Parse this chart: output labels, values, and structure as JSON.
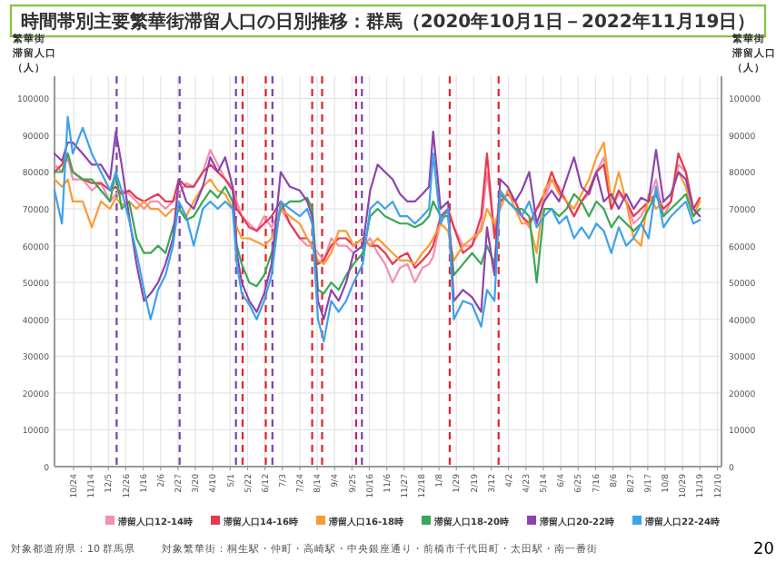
{
  "chart_data": {
    "type": "line",
    "title": "時間帯別主要繁華街滞留人口の日別推移：群馬（2020年10月1日－2022年11月19日）",
    "ylabel": "繁華街滞留人口（人）",
    "y2label": "繁華街滞留人口（人）",
    "x": [
      "2020-10-01",
      "2020-10-10",
      "2020-10-17",
      "2020-10-23",
      "2020-11-04",
      "2020-11-15",
      "2020-11-26",
      "2020-12-07",
      "2020-12-14",
      "2020-12-21",
      "2020-12-30",
      "2021-01-08",
      "2021-01-17",
      "2021-01-25",
      "2021-02-03",
      "2021-02-12",
      "2021-02-21",
      "2021-02-28",
      "2021-03-09",
      "2021-03-18",
      "2021-03-29",
      "2021-04-07",
      "2021-04-16",
      "2021-04-25",
      "2021-05-04",
      "2021-05-09",
      "2021-05-15",
      "2021-05-24",
      "2021-06-02",
      "2021-06-11",
      "2021-06-20",
      "2021-07-01",
      "2021-07-12",
      "2021-07-24",
      "2021-08-02",
      "2021-08-08",
      "2021-08-15",
      "2021-08-22",
      "2021-08-31",
      "2021-09-09",
      "2021-09-18",
      "2021-09-27",
      "2021-10-08",
      "2021-10-17",
      "2021-10-26",
      "2021-11-04",
      "2021-11-13",
      "2021-11-22",
      "2021-12-01",
      "2021-12-10",
      "2021-12-19",
      "2021-12-27",
      "2022-01-01",
      "2022-01-10",
      "2022-01-19",
      "2022-01-26",
      "2022-02-06",
      "2022-02-17",
      "2022-02-28",
      "2022-03-07",
      "2022-03-16",
      "2022-03-23",
      "2022-04-01",
      "2022-04-10",
      "2022-04-18",
      "2022-04-27",
      "2022-05-06",
      "2022-05-15",
      "2022-05-24",
      "2022-06-02",
      "2022-06-11",
      "2022-06-20",
      "2022-06-29",
      "2022-07-08",
      "2022-07-17",
      "2022-07-26",
      "2022-08-04",
      "2022-08-13",
      "2022-08-22",
      "2022-08-31",
      "2022-09-09",
      "2022-09-18",
      "2022-09-27",
      "2022-10-06",
      "2022-10-15",
      "2022-10-24",
      "2022-11-02",
      "2022-11-11",
      "2022-11-19"
    ],
    "series": [
      {
        "name": "滞留人口12-14時",
        "color": "#f48fb1",
        "values": [
          82000,
          80000,
          84000,
          78000,
          78000,
          75000,
          77000,
          72000,
          74000,
          75000,
          74000,
          72000,
          70000,
          72000,
          72000,
          70000,
          72000,
          74000,
          77000,
          76000,
          80000,
          86000,
          82000,
          78000,
          76000,
          72000,
          68000,
          66000,
          64000,
          68000,
          65000,
          70000,
          66000,
          62000,
          60000,
          60000,
          58000,
          56000,
          62000,
          60000,
          60000,
          58000,
          60000,
          62000,
          58000,
          55000,
          50000,
          54000,
          55000,
          50000,
          54000,
          55000,
          57000,
          67000,
          70000,
          65000,
          60000,
          60000,
          65000,
          80000,
          64000,
          72000,
          74000,
          72000,
          68000,
          65000,
          70000,
          72000,
          78000,
          76000,
          72000,
          68000,
          72000,
          74000,
          80000,
          84000,
          70000,
          74000,
          72000,
          66000,
          68000,
          72000,
          78000,
          68000,
          72000,
          82000,
          80000,
          70000,
          72000
        ]
      },
      {
        "name": "滞留人口14-16時",
        "color": "#e8384f",
        "values": [
          80000,
          82000,
          85000,
          80000,
          78000,
          77000,
          77000,
          75000,
          76000,
          74000,
          75000,
          73000,
          72000,
          73000,
          74000,
          72000,
          72000,
          78000,
          76000,
          76000,
          80000,
          82000,
          80000,
          78000,
          75000,
          70000,
          68000,
          65000,
          64000,
          66000,
          68000,
          72000,
          66000,
          62000,
          62000,
          60000,
          55000,
          56000,
          60000,
          62000,
          62000,
          60000,
          62000,
          60000,
          60000,
          58000,
          55000,
          57000,
          58000,
          54000,
          56000,
          58000,
          60000,
          68000,
          70000,
          65000,
          58000,
          60000,
          68000,
          85000,
          62000,
          72000,
          74000,
          72000,
          68000,
          66000,
          70000,
          74000,
          80000,
          75000,
          72000,
          68000,
          72000,
          75000,
          80000,
          82000,
          70000,
          75000,
          72000,
          68000,
          70000,
          72000,
          74000,
          70000,
          72000,
          85000,
          80000,
          70000,
          73000
        ]
      },
      {
        "name": "滞留人口16-18時",
        "color": "#fd9a34",
        "values": [
          78000,
          76000,
          78000,
          72000,
          72000,
          65000,
          72000,
          70000,
          73000,
          71000,
          72000,
          70000,
          72000,
          70000,
          70000,
          68000,
          70000,
          70000,
          68000,
          72000,
          76000,
          78000,
          75000,
          74000,
          70000,
          65000,
          62000,
          62000,
          61000,
          60000,
          62000,
          70000,
          68000,
          66000,
          62000,
          60000,
          56000,
          55000,
          58000,
          64000,
          64000,
          60000,
          62000,
          60000,
          62000,
          60000,
          58000,
          56000,
          56000,
          55000,
          58000,
          60000,
          62000,
          66000,
          64000,
          56000,
          60000,
          62000,
          64000,
          70000,
          66000,
          70000,
          75000,
          70000,
          66000,
          66000,
          58000,
          75000,
          78000,
          74000,
          72000,
          70000,
          74000,
          78000,
          84000,
          88000,
          72000,
          80000,
          72000,
          62000,
          60000,
          74000,
          70000,
          72000,
          74000,
          80000,
          76000,
          68000,
          72000
        ]
      },
      {
        "name": "滞留人口18-20時",
        "color": "#3aa757",
        "values": [
          80000,
          80000,
          85000,
          80000,
          78000,
          78000,
          75000,
          72000,
          80000,
          70000,
          72000,
          62000,
          58000,
          58000,
          60000,
          58000,
          65000,
          70000,
          67000,
          68000,
          72000,
          75000,
          73000,
          76000,
          72000,
          60000,
          55000,
          50000,
          49000,
          52000,
          58000,
          70000,
          72000,
          72000,
          73000,
          70000,
          48000,
          47000,
          50000,
          48000,
          52000,
          55000,
          58000,
          68000,
          70000,
          68000,
          67000,
          66000,
          66000,
          65000,
          66000,
          68000,
          72000,
          68000,
          68000,
          52000,
          55000,
          58000,
          55000,
          60000,
          55000,
          74000,
          72000,
          70000,
          70000,
          68000,
          50000,
          70000,
          70000,
          68000,
          70000,
          74000,
          72000,
          68000,
          72000,
          70000,
          65000,
          68000,
          66000,
          64000,
          66000,
          70000,
          74000,
          68000,
          70000,
          72000,
          74000,
          68000,
          70000
        ]
      },
      {
        "name": "滞留人口20-22時",
        "color": "#8e44ad",
        "values": [
          85000,
          83000,
          88000,
          88000,
          85000,
          82000,
          82000,
          78000,
          91000,
          82000,
          68000,
          55000,
          45000,
          47000,
          50000,
          55000,
          62000,
          78000,
          72000,
          70000,
          76000,
          84000,
          80000,
          84000,
          76000,
          58000,
          50000,
          45000,
          42000,
          47000,
          55000,
          80000,
          76000,
          75000,
          72000,
          68000,
          45000,
          40000,
          48000,
          45000,
          50000,
          58000,
          60000,
          75000,
          82000,
          80000,
          78000,
          74000,
          72000,
          72000,
          74000,
          76000,
          91000,
          70000,
          72000,
          45000,
          48000,
          46000,
          42000,
          65000,
          52000,
          78000,
          76000,
          72000,
          75000,
          80000,
          66000,
          72000,
          75000,
          72000,
          78000,
          84000,
          76000,
          74000,
          80000,
          72000,
          74000,
          70000,
          74000,
          70000,
          73000,
          72000,
          86000,
          72000,
          74000,
          80000,
          78000,
          70000,
          68000
        ]
      },
      {
        "name": "滞留人口22-24時",
        "color": "#3ea1ec",
        "values": [
          75000,
          66000,
          95000,
          85000,
          92000,
          85000,
          80000,
          75000,
          80000,
          75000,
          67000,
          58000,
          48000,
          40000,
          48000,
          52000,
          60000,
          72000,
          68000,
          60000,
          70000,
          72000,
          70000,
          72000,
          70000,
          55000,
          47000,
          44000,
          40000,
          45000,
          52000,
          72000,
          70000,
          68000,
          70000,
          66000,
          40000,
          34000,
          45000,
          42000,
          45000,
          50000,
          55000,
          70000,
          72000,
          70000,
          72000,
          68000,
          68000,
          66000,
          68000,
          70000,
          85000,
          66000,
          70000,
          40000,
          45000,
          44000,
          38000,
          48000,
          45000,
          75000,
          72000,
          70000,
          68000,
          72000,
          65000,
          68000,
          70000,
          66000,
          68000,
          62000,
          65000,
          62000,
          66000,
          64000,
          58000,
          65000,
          60000,
          62000,
          66000,
          62000,
          76000,
          65000,
          68000,
          70000,
          72000,
          66000,
          67000
        ]
      }
    ],
    "xlim": [
      "2020-10-01",
      "2022-12-15"
    ],
    "xticks": [
      {
        "value": "2020-10-24",
        "label": "10/24"
      },
      {
        "value": "2020-11-14",
        "label": "11/14"
      },
      {
        "value": "2020-12-05",
        "label": "12/5"
      },
      {
        "value": "2020-12-26",
        "label": "12/26"
      },
      {
        "value": "2021-01-16",
        "label": "1/16"
      },
      {
        "value": "2021-02-06",
        "label": "2/6"
      },
      {
        "value": "2021-02-27",
        "label": "2/27"
      },
      {
        "value": "2021-03-20",
        "label": "3/20"
      },
      {
        "value": "2021-04-10",
        "label": "4/10"
      },
      {
        "value": "2021-05-01",
        "label": "5/1"
      },
      {
        "value": "2021-05-22",
        "label": "5/22"
      },
      {
        "value": "2021-06-12",
        "label": "6/12"
      },
      {
        "value": "2021-07-03",
        "label": "7/3"
      },
      {
        "value": "2021-07-24",
        "label": "7/24"
      },
      {
        "value": "2021-08-14",
        "label": "8/14"
      },
      {
        "value": "2021-09-04",
        "label": "9/4"
      },
      {
        "value": "2021-09-25",
        "label": "9/25"
      },
      {
        "value": "2021-10-16",
        "label": "10/16"
      },
      {
        "value": "2021-11-06",
        "label": "11/6"
      },
      {
        "value": "2021-11-27",
        "label": "11/27"
      },
      {
        "value": "2021-12-18",
        "label": "12/18"
      },
      {
        "value": "2022-01-08",
        "label": "1/8"
      },
      {
        "value": "2022-01-29",
        "label": "1/29"
      },
      {
        "value": "2022-02-19",
        "label": "2/19"
      },
      {
        "value": "2022-03-12",
        "label": "3/12"
      },
      {
        "value": "2022-04-02",
        "label": "4/2"
      },
      {
        "value": "2022-04-23",
        "label": "4/23"
      },
      {
        "value": "2022-05-14",
        "label": "5/14"
      },
      {
        "value": "2022-06-04",
        "label": "6/4"
      },
      {
        "value": "2022-06-25",
        "label": "6/25"
      },
      {
        "value": "2022-07-16",
        "label": "7/16"
      },
      {
        "value": "2022-08-06",
        "label": "8/6"
      },
      {
        "value": "2022-08-27",
        "label": "8/27"
      },
      {
        "value": "2022-09-17",
        "label": "9/17"
      },
      {
        "value": "2022-10-08",
        "label": "10/8"
      },
      {
        "value": "2022-10-29",
        "label": "10/29"
      },
      {
        "value": "2022-11-19",
        "label": "11/19"
      },
      {
        "value": "2022-12-10",
        "label": "12/10"
      }
    ],
    "ylim": [
      0,
      106000
    ],
    "yticks": [
      0,
      10000,
      20000,
      30000,
      40000,
      50000,
      60000,
      70000,
      80000,
      90000,
      100000
    ],
    "y2lim": [
      0,
      106000
    ],
    "y2ticks": [
      0,
      10000,
      20000,
      30000,
      40000,
      50000,
      60000,
      70000,
      80000,
      90000,
      100000
    ],
    "ref_lines": [
      {
        "axis": "x",
        "value": "2020-12-15",
        "color": "#7b3fb0",
        "line_style": "dashed"
      },
      {
        "axis": "x",
        "value": "2021-03-01",
        "color": "#7b3fb0",
        "line_style": "dashed"
      },
      {
        "axis": "x",
        "value": "2021-05-08",
        "color": "#7b3fb0",
        "line_style": "dashed"
      },
      {
        "axis": "x",
        "value": "2021-05-16",
        "color": "#e8202a",
        "line_style": "dashed"
      },
      {
        "axis": "x",
        "value": "2021-06-13",
        "color": "#e8202a",
        "line_style": "dashed"
      },
      {
        "axis": "x",
        "value": "2021-06-21",
        "color": "#7b3fb0",
        "line_style": "dashed"
      },
      {
        "axis": "x",
        "value": "2021-08-08",
        "color": "#e8202a",
        "line_style": "dashed"
      },
      {
        "axis": "x",
        "value": "2021-08-20",
        "color": "#e8202a",
        "line_style": "dashed"
      },
      {
        "axis": "x",
        "value": "2021-09-30",
        "color": "#c0206a",
        "line_style": "dashed"
      },
      {
        "axis": "x",
        "value": "2021-10-07",
        "color": "#7b3fb0",
        "line_style": "dashed"
      },
      {
        "axis": "x",
        "value": "2022-01-21",
        "color": "#e8202a",
        "line_style": "dashed"
      },
      {
        "axis": "x",
        "value": "2022-03-21",
        "color": "#e8202a",
        "line_style": "dashed"
      }
    ],
    "grid": true,
    "legend": "bottom",
    "line_style": "solid",
    "marker": "none",
    "annotations": [
      "対象都道府県：10 群馬県",
      "対象繁華街：桐生駅・仲町・高崎駅・中央銀座通り・前橋市千代田町・太田駅・南一番街",
      "20"
    ]
  }
}
